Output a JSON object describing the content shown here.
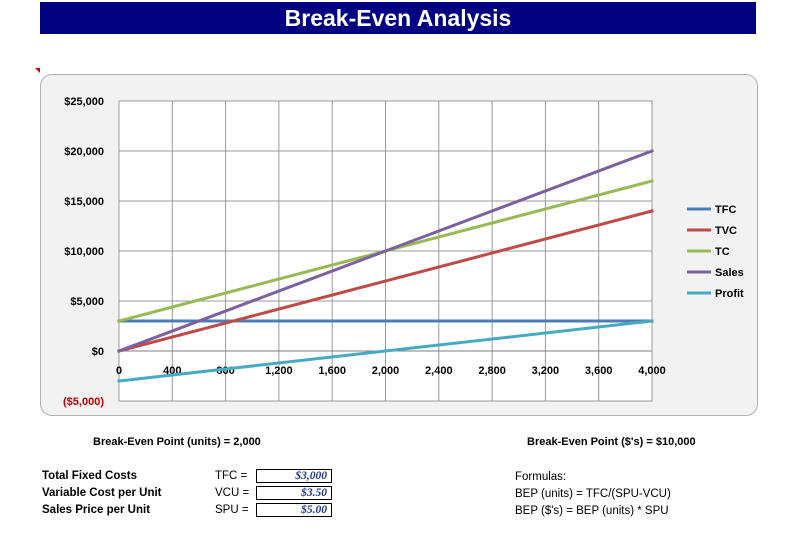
{
  "title": "Break-Even Analysis",
  "bep": {
    "units_text": "Break-Even Point (units) = 2,000",
    "dollars_text": "Break-Even Point ($'s) = $10,000"
  },
  "inputs": [
    {
      "label": "Total Fixed Costs",
      "abbr": "TFC =",
      "value": "$3,000"
    },
    {
      "label": "Variable Cost per Unit",
      "abbr": "VCU =",
      "value": "$3.50"
    },
    {
      "label": "Sales Price per Unit",
      "abbr": "SPU =",
      "value": "$5.00"
    }
  ],
  "formulas": {
    "heading": "Formulas:",
    "lines": [
      "BEP (units) = TFC/(SPU-VCU)",
      "BEP ($'s) = BEP (units) * SPU"
    ]
  },
  "chart_data": {
    "type": "line",
    "x": [
      0,
      4000
    ],
    "xlim": [
      0,
      4000
    ],
    "ylim": [
      -5000,
      25000
    ],
    "xticks": [
      0,
      400,
      800,
      1200,
      1600,
      2000,
      2400,
      2800,
      3200,
      3600,
      4000
    ],
    "xtick_labels": [
      "0",
      "400",
      "800",
      "1,200",
      "1,600",
      "2,000",
      "2,400",
      "2,800",
      "3,200",
      "3,600",
      "4,000"
    ],
    "yticks": [
      -5000,
      0,
      5000,
      10000,
      15000,
      20000,
      25000
    ],
    "ytick_labels": [
      "($5,000)",
      "$0",
      "$5,000",
      "$10,000",
      "$15,000",
      "$20,000",
      "$25,000"
    ],
    "negative_tick_color": "#c00000",
    "grid": true,
    "legend_position": "right",
    "series": [
      {
        "name": "TFC",
        "color": "#4a7ebb",
        "values": [
          3000,
          3000
        ]
      },
      {
        "name": "TVC",
        "color": "#be4b48",
        "values": [
          0,
          14000
        ]
      },
      {
        "name": "TC",
        "color": "#98b954",
        "values": [
          3000,
          17000
        ]
      },
      {
        "name": "Sales",
        "color": "#7d60a0",
        "values": [
          0,
          20000
        ]
      },
      {
        "name": "Profit",
        "color": "#46aac5",
        "values": [
          -3000,
          3000
        ]
      }
    ]
  }
}
